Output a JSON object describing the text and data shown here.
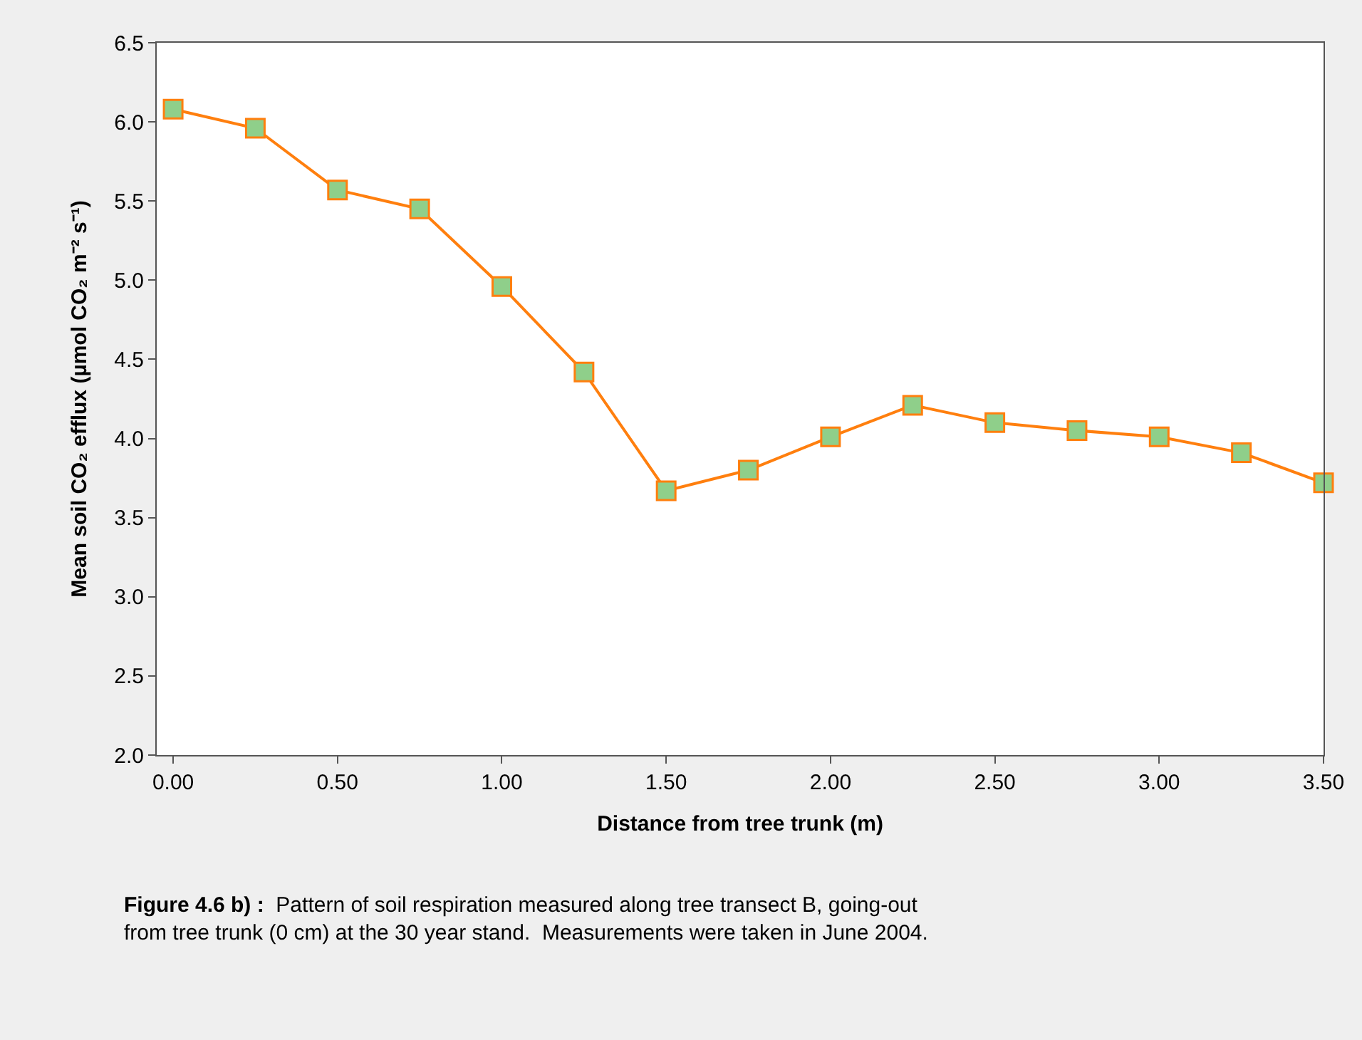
{
  "chart_data": {
    "type": "line",
    "xlabel": "Distance from tree trunk (m)",
    "ylabel": "Mean soil CO₂ efflux (µmol CO₂ m⁻² s⁻¹)",
    "x": [
      0,
      0.25,
      0.5,
      0.75,
      1.0,
      1.25,
      1.5,
      1.75,
      2.0,
      2.25,
      2.5,
      2.75,
      3.0,
      3.25,
      3.5
    ],
    "series": [
      {
        "color": "#ff7f0e",
        "colors": [
          "#8fcf8a",
          "#8fcf8a",
          "#8fcf8a",
          "#8fcf8a",
          "#8fcf8a",
          "#8fcf8a",
          "#8fcf8a",
          "#8fcf8a",
          "#8fcf8a",
          "#8fcf8a",
          "#8fcf8a",
          "#8fcf8a",
          "#8fcf8a",
          "#8fcf8a",
          "#8fcf8a"
        ],
        "values": [
          6.08,
          5.96,
          5.57,
          5.45,
          4.96,
          4.42,
          3.67,
          3.8,
          4.01,
          4.21,
          4.1,
          4.05,
          4.01,
          3.91,
          3.72
        ]
      }
    ],
    "xlim": [
      -0.05,
      3.5
    ],
    "xticks": [
      {
        "value": 0,
        "label": "0.00"
      },
      {
        "value": 0.5,
        "label": "0.50"
      },
      {
        "value": 1.0,
        "label": "1.00"
      },
      {
        "value": 1.5,
        "label": "1.50"
      },
      {
        "value": 2.0,
        "label": "2.00"
      },
      {
        "value": 2.5,
        "label": "2.50"
      },
      {
        "value": 3.0,
        "label": "3.00"
      },
      {
        "value": 3.5,
        "label": "3.50"
      }
    ],
    "ylim": [
      2.0,
      6.5
    ],
    "yticks": [
      {
        "value": 2.0,
        "label": "2.0"
      },
      {
        "value": 2.5,
        "label": "2.5"
      },
      {
        "value": 3.0,
        "label": "3.0"
      },
      {
        "value": 3.5,
        "label": "3.5"
      },
      {
        "value": 4.0,
        "label": "4.0"
      },
      {
        "value": 4.5,
        "label": "4.5"
      },
      {
        "value": 5.0,
        "label": "5.0"
      },
      {
        "value": 5.5,
        "label": "5.5"
      },
      {
        "value": 6.0,
        "label": "6.0"
      },
      {
        "value": 6.5,
        "label": "6.5"
      }
    ],
    "marker": "square",
    "annotations": [
      "Figure 4.6 b) :  Pattern of soil respiration measured along tree transect B, going-out from tree trunk (0 cm) at the 30 year stand.  Measurements were taken in June 2004."
    ]
  }
}
